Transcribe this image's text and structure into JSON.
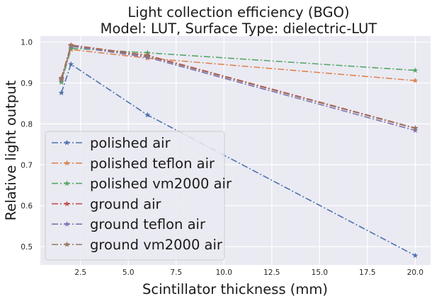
{
  "chart_data": {
    "type": "line",
    "title_line1": "Light collection efficiency (BGO)",
    "title_line2": "Model: LUT, Surface Type: dielectric-LUT",
    "xlabel": "Scintillator thickness (mm)",
    "ylabel": "Relative light output",
    "xlim": [
      0.4,
      20.8
    ],
    "ylim": [
      0.455,
      1.015
    ],
    "xticks": [
      2.5,
      5.0,
      7.5,
      10.0,
      12.5,
      15.0,
      17.5,
      20.0
    ],
    "xtick_labels": [
      "2.5",
      "5.0",
      "7.5",
      "10.0",
      "12.5",
      "15.0",
      "17.5",
      "20.0"
    ],
    "yticks": [
      0.5,
      0.6,
      0.7,
      0.8,
      0.9,
      1.0
    ],
    "ytick_labels": [
      "0.5",
      "0.6",
      "0.7",
      "0.8",
      "0.9",
      "1.0"
    ],
    "grid": true,
    "legend_position": "lower-left",
    "x": [
      1.5,
      2.0,
      6.0,
      20.0
    ],
    "series": [
      {
        "name": "polished air",
        "color": "#4c72b0",
        "values": [
          0.876,
          0.946,
          0.822,
          0.478
        ]
      },
      {
        "name": "polished teflon air",
        "color": "#dd8452",
        "values": [
          0.905,
          0.982,
          0.961,
          0.906
        ]
      },
      {
        "name": "polished vm2000 air",
        "color": "#55a868",
        "values": [
          0.902,
          0.985,
          0.974,
          0.931
        ]
      },
      {
        "name": "ground air",
        "color": "#c44e52",
        "values": [
          0.912,
          0.993,
          0.968,
          0.79
        ]
      },
      {
        "name": "ground teflon air",
        "color": "#8172b3",
        "values": [
          0.908,
          0.99,
          0.963,
          0.784
        ]
      },
      {
        "name": "ground vm2000 air",
        "color": "#937860",
        "values": [
          0.91,
          0.992,
          0.966,
          0.789
        ]
      }
    ]
  }
}
